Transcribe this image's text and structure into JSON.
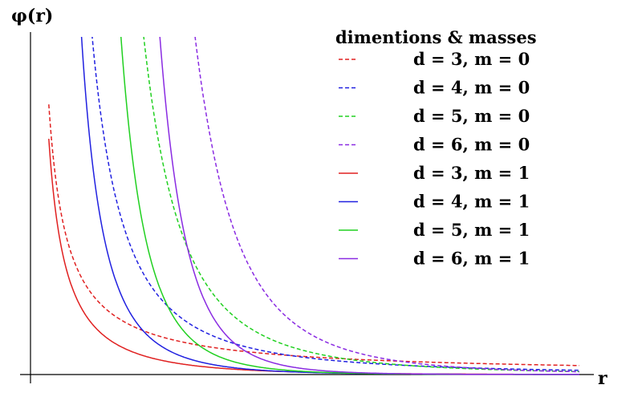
{
  "chart_data": {
    "type": "line",
    "xlabel": "r",
    "ylabel": "φ(r)",
    "legend_title": "dimentions & masses",
    "legend_position": "top-right",
    "grid": false,
    "xlim": [
      0,
      9
    ],
    "ylim": [
      0,
      10
    ],
    "series": [
      {
        "name": "d = 3, m = 0",
        "d": 3,
        "m": 0,
        "color": "#e02020",
        "dash": true
      },
      {
        "name": "d = 4, m = 0",
        "d": 4,
        "m": 0,
        "color": "#2020e0",
        "dash": true
      },
      {
        "name": "d = 5, m = 0",
        "d": 5,
        "m": 0,
        "color": "#20d020",
        "dash": true
      },
      {
        "name": "d = 6, m = 0",
        "d": 6,
        "m": 0,
        "color": "#8a2be2",
        "dash": true
      },
      {
        "name": "d = 3, m = 1",
        "d": 3,
        "m": 1,
        "color": "#e02020",
        "dash": false
      },
      {
        "name": "d = 4, m = 1",
        "d": 4,
        "m": 1,
        "color": "#2020e0",
        "dash": false
      },
      {
        "name": "d = 5, m = 1",
        "d": 5,
        "m": 1,
        "color": "#20d020",
        "dash": false
      },
      {
        "name": "d = 6, m = 1",
        "d": 6,
        "m": 1,
        "color": "#8a2be2",
        "dash": false
      }
    ]
  }
}
